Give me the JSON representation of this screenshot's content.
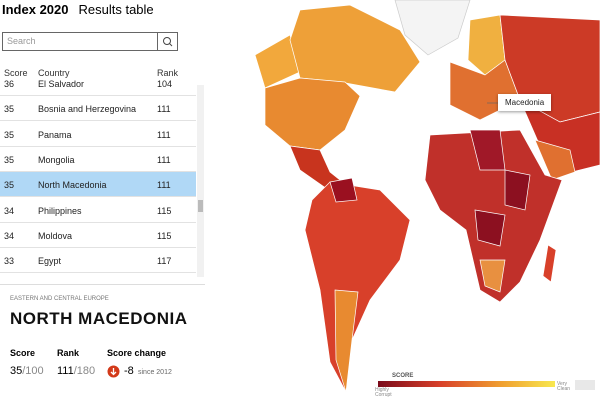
{
  "header": {
    "title": "Index 2020",
    "subtitle": "Results table"
  },
  "search": {
    "placeholder": "Search"
  },
  "table": {
    "columns": [
      "Score",
      "Country",
      "Rank"
    ],
    "rows": [
      [
        "36",
        "El Salvador",
        "104"
      ],
      [
        "35",
        "Bosnia and Herzegovina",
        "111"
      ],
      [
        "35",
        "Panama",
        "111"
      ],
      [
        "35",
        "Mongolia",
        "111"
      ],
      [
        "35",
        "North Macedonia",
        "111"
      ],
      [
        "34",
        "Philippines",
        "115"
      ],
      [
        "34",
        "Moldova",
        "115"
      ],
      [
        "33",
        "Egypt",
        "117"
      ]
    ]
  },
  "detail": {
    "region": "EASTERN AND CENTRAL EUROPE",
    "name": "NORTH MACEDONIA",
    "score_label": "Score",
    "score": "35",
    "score_of": "/100",
    "rank_label": "Rank",
    "rank": "111",
    "rank_of": "/180",
    "change_label": "Score change",
    "change": "-8",
    "change_since": "since 2012"
  },
  "map": {
    "tooltip": "Macedonia",
    "legend_title": "SCORE",
    "legend_low": "Highly Corrupt",
    "legend_high": "Very Clean"
  }
}
